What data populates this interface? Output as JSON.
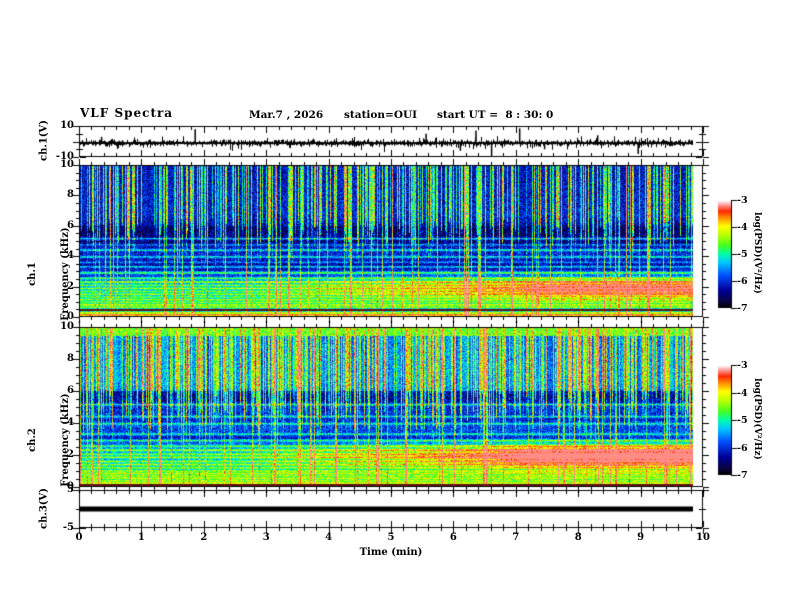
{
  "header": {
    "title": "VLF Spectra",
    "date": "Mar.7 , 2026",
    "station": "station=OUI",
    "start_ut": "start UT =  8 : 30: 0"
  },
  "x_axis": {
    "label": "Time (min)",
    "ticks": [
      0,
      1,
      2,
      3,
      4,
      5,
      6,
      7,
      8,
      9,
      10
    ],
    "minor_step_min": 0.2,
    "range_min": [
      0,
      10
    ]
  },
  "panels": {
    "ch1_voltage": {
      "label": "ch.1(V)",
      "yticks": [
        10,
        -10
      ],
      "ylim": [
        -10,
        10
      ]
    },
    "ch1_spectrogram": {
      "label_line1": "ch.1",
      "label_line2": "Frequency (kHz)",
      "yticks": [
        0,
        2,
        4,
        6,
        8,
        10
      ],
      "ylim": [
        0,
        10
      ]
    },
    "ch2_spectrogram": {
      "label_line1": "ch.2",
      "label_line2": "Frequency (kHz)",
      "yticks": [
        0,
        2,
        4,
        6,
        8,
        10
      ],
      "ylim": [
        0,
        10
      ]
    },
    "ch3_voltage": {
      "label": "ch.3(V)",
      "yticks": [
        5,
        -5
      ],
      "ylim": [
        -5,
        5
      ]
    }
  },
  "colorbar": {
    "label": "log(PSD)(V²/Hz)",
    "ticks": [
      -3,
      -4,
      -5,
      -6,
      -7
    ]
  },
  "chart_data": [
    {
      "panel": "ch1_voltage",
      "type": "line",
      "ylabel": "ch.1(V)",
      "ylim": [
        -10,
        10
      ],
      "x_range_min": [
        0,
        9.84
      ],
      "baseline_v": 0,
      "noise_band_v": 1.5,
      "spikes": [
        {
          "t_min": 0.35,
          "v": 4
        },
        {
          "t_min": 1.85,
          "v": 9
        },
        {
          "t_min": 5.55,
          "v": 6
        },
        {
          "t_min": 6.35,
          "v": 8
        },
        {
          "t_min": 7.05,
          "v": 9.5
        },
        {
          "t_min": 8.3,
          "v": 5
        },
        {
          "t_min": 6.1,
          "v": -5
        },
        {
          "t_min": 6.6,
          "v": -8
        },
        {
          "t_min": 7.45,
          "v": -4
        },
        {
          "t_min": 8.95,
          "v": -7
        }
      ]
    },
    {
      "panel": "ch1_spectrogram",
      "type": "heatmap",
      "ylabel": "ch.1 Frequency (kHz)",
      "ylim": [
        0,
        10
      ],
      "x_range_min": [
        0,
        9.84
      ],
      "z_label": "log(PSD)(V²/Hz)",
      "z_range": [
        -7,
        -3
      ],
      "base_level": 0.27,
      "base_slope": 0.011,
      "low_band_boost": 0.15,
      "low_band_top_khz": 3,
      "upper_patch": 0.08,
      "impulse_streaks": {
        "probability": 0.38,
        "min_floor_khz": 4.5,
        "max_floor_khz": 6.5,
        "full_height_probability": 0.12
      },
      "horizontal_lines": [
        [
          5.15,
          0.3
        ],
        [
          4.75,
          0.18
        ],
        [
          4.4,
          0.26
        ],
        [
          3.95,
          0.24
        ],
        [
          3.6,
          0.18
        ],
        [
          3.3,
          0.26
        ],
        [
          2.9,
          0.28
        ],
        [
          2.55,
          0.26
        ],
        [
          2.3,
          0.34
        ],
        [
          2.08,
          0.26
        ],
        [
          1.88,
          0.3
        ],
        [
          1.68,
          0.24
        ],
        [
          1.5,
          0.28
        ],
        [
          1.32,
          0.24
        ],
        [
          1.14,
          0.28
        ],
        [
          0.97,
          0.24
        ],
        [
          0.8,
          0.3
        ],
        [
          0.65,
          0.26
        ],
        [
          0.28,
          0.3
        ],
        [
          0.15,
          0.28
        ]
      ],
      "dark_bands": [
        [
          5.7,
          0.45,
          0.1
        ],
        [
          4.95,
          0.25,
          0.07
        ],
        [
          3.45,
          0.25,
          0.07
        ],
        [
          2.72,
          0.12,
          0.06
        ]
      ],
      "maroon_line_khz": 0.47,
      "rising_band": {
        "center_khz": 1.9,
        "width_khz": 0.45,
        "amp_vs_time": [
          [
            0,
            0
          ],
          [
            2.5,
            0.02
          ],
          [
            4,
            0.14
          ],
          [
            6,
            0.28
          ],
          [
            7,
            0.36
          ],
          [
            7.5,
            0.48
          ],
          [
            10,
            0.48
          ]
        ]
      }
    },
    {
      "panel": "ch2_spectrogram",
      "type": "heatmap",
      "ylabel": "ch.2 Frequency (kHz)",
      "ylim": [
        0,
        10
      ],
      "x_range_min": [
        0,
        9.84
      ],
      "z_label": "log(PSD)(V²/Hz)",
      "z_range": [
        -7,
        -3
      ],
      "base_level": 0.3,
      "base_slope": 0.008,
      "low_band_boost": 0.12,
      "low_band_top_khz": 3,
      "upper_patch": 0.28,
      "top_edge_khz": 9.45,
      "impulse_streaks": {
        "probability": 0.46,
        "min_floor_khz": 3.5,
        "max_floor_khz": 6.2,
        "full_height_probability": 0.12
      },
      "horizontal_lines": [
        [
          5.15,
          0.26
        ],
        [
          4.4,
          0.24
        ],
        [
          3.95,
          0.22
        ],
        [
          3.3,
          0.24
        ],
        [
          2.9,
          0.26
        ],
        [
          2.55,
          0.24
        ],
        [
          2.3,
          0.3
        ],
        [
          2.05,
          0.26
        ],
        [
          1.85,
          0.28
        ],
        [
          1.6,
          0.26
        ],
        [
          1.4,
          0.28
        ],
        [
          1.2,
          0.26
        ],
        [
          1.0,
          0.28
        ],
        [
          0.85,
          0.3
        ],
        [
          0.7,
          0.26
        ],
        [
          0.55,
          0.3
        ],
        [
          0.4,
          0.26
        ],
        [
          0.25,
          0.34
        ]
      ],
      "dark_bands": [
        [
          5.6,
          0.4,
          0.09
        ],
        [
          2.95,
          0.25,
          0.08
        ],
        [
          4.3,
          0.2,
          0.05
        ]
      ],
      "maroon_line_khz": 0.12,
      "rising_band": {
        "center_khz": 1.95,
        "width_khz": 0.5,
        "amp_vs_time": [
          [
            0,
            0
          ],
          [
            2.5,
            0.04
          ],
          [
            4,
            0.18
          ],
          [
            5.5,
            0.28
          ],
          [
            6.5,
            0.42
          ],
          [
            7.2,
            0.62
          ],
          [
            10,
            0.64
          ]
        ]
      }
    },
    {
      "panel": "ch3_voltage",
      "type": "line",
      "ylabel": "ch.3(V)",
      "ylim": [
        -5,
        5
      ],
      "x_range_min": [
        0,
        9.84
      ],
      "constant_v": 0,
      "line_thickness_v": 1.2
    }
  ]
}
